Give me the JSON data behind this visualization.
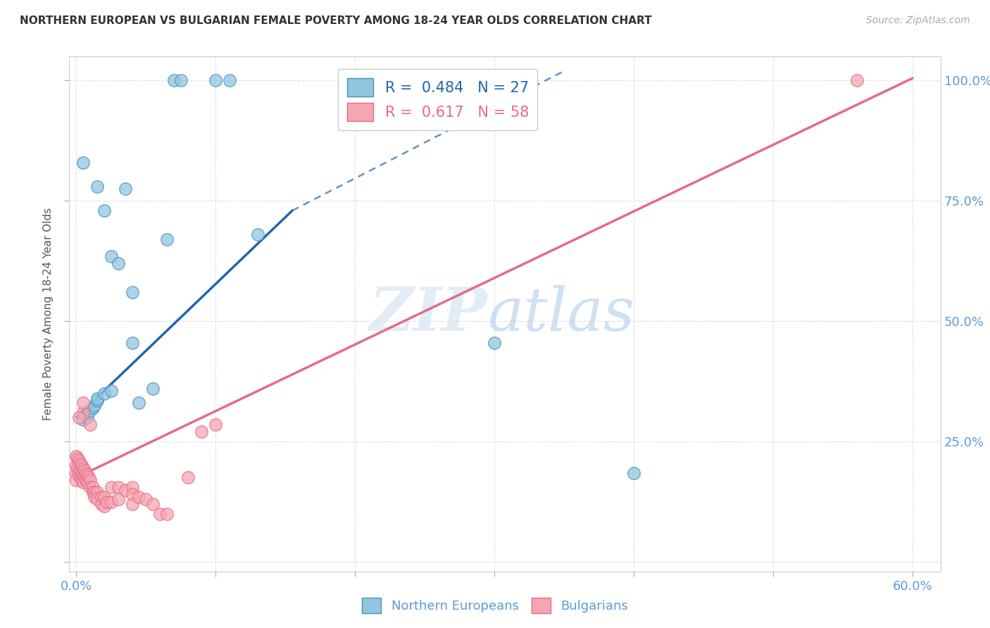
{
  "title": "NORTHERN EUROPEAN VS BULGARIAN FEMALE POVERTY AMONG 18-24 YEAR OLDS CORRELATION CHART",
  "source": "Source: ZipAtlas.com",
  "ylabel": "Female Poverty Among 18-24 Year Olds",
  "xlim": [
    -0.005,
    0.62
  ],
  "ylim": [
    -0.02,
    1.05
  ],
  "xticks": [
    0.0,
    0.1,
    0.2,
    0.3,
    0.4,
    0.5,
    0.6
  ],
  "yticks": [
    0.0,
    0.25,
    0.5,
    0.75,
    1.0
  ],
  "blue_color": "#92c5de",
  "pink_color": "#f4a7b0",
  "blue_edge_color": "#4393c3",
  "pink_edge_color": "#e8698a",
  "blue_line_color": "#2166ac",
  "pink_line_color": "#e8698a",
  "blue_scatter": [
    [
      0.005,
      0.83
    ],
    [
      0.015,
      0.78
    ],
    [
      0.02,
      0.73
    ],
    [
      0.025,
      0.635
    ],
    [
      0.03,
      0.62
    ],
    [
      0.035,
      0.775
    ],
    [
      0.04,
      0.56
    ],
    [
      0.04,
      0.455
    ],
    [
      0.045,
      0.33
    ],
    [
      0.055,
      0.36
    ],
    [
      0.065,
      0.67
    ],
    [
      0.07,
      1.0
    ],
    [
      0.075,
      1.0
    ],
    [
      0.1,
      1.0
    ],
    [
      0.11,
      1.0
    ],
    [
      0.005,
      0.295
    ],
    [
      0.008,
      0.3
    ],
    [
      0.01,
      0.315
    ],
    [
      0.012,
      0.32
    ],
    [
      0.013,
      0.325
    ],
    [
      0.015,
      0.335
    ],
    [
      0.015,
      0.34
    ],
    [
      0.02,
      0.35
    ],
    [
      0.025,
      0.355
    ],
    [
      0.13,
      0.68
    ],
    [
      0.3,
      0.455
    ],
    [
      0.4,
      0.185
    ]
  ],
  "pink_scatter": [
    [
      0.0,
      0.22
    ],
    [
      0.0,
      0.2
    ],
    [
      0.0,
      0.185
    ],
    [
      0.0,
      0.17
    ],
    [
      0.001,
      0.215
    ],
    [
      0.001,
      0.195
    ],
    [
      0.002,
      0.21
    ],
    [
      0.002,
      0.185
    ],
    [
      0.003,
      0.205
    ],
    [
      0.003,
      0.19
    ],
    [
      0.003,
      0.175
    ],
    [
      0.004,
      0.2
    ],
    [
      0.004,
      0.185
    ],
    [
      0.004,
      0.17
    ],
    [
      0.005,
      0.195
    ],
    [
      0.005,
      0.18
    ],
    [
      0.005,
      0.165
    ],
    [
      0.006,
      0.19
    ],
    [
      0.006,
      0.175
    ],
    [
      0.007,
      0.185
    ],
    [
      0.007,
      0.17
    ],
    [
      0.008,
      0.18
    ],
    [
      0.008,
      0.165
    ],
    [
      0.009,
      0.175
    ],
    [
      0.01,
      0.17
    ],
    [
      0.01,
      0.155
    ],
    [
      0.012,
      0.155
    ],
    [
      0.012,
      0.145
    ],
    [
      0.013,
      0.145
    ],
    [
      0.013,
      0.135
    ],
    [
      0.015,
      0.145
    ],
    [
      0.015,
      0.13
    ],
    [
      0.018,
      0.135
    ],
    [
      0.018,
      0.12
    ],
    [
      0.02,
      0.135
    ],
    [
      0.02,
      0.115
    ],
    [
      0.022,
      0.125
    ],
    [
      0.025,
      0.155
    ],
    [
      0.025,
      0.125
    ],
    [
      0.03,
      0.155
    ],
    [
      0.03,
      0.13
    ],
    [
      0.035,
      0.15
    ],
    [
      0.04,
      0.155
    ],
    [
      0.04,
      0.14
    ],
    [
      0.04,
      0.12
    ],
    [
      0.045,
      0.135
    ],
    [
      0.05,
      0.13
    ],
    [
      0.055,
      0.12
    ],
    [
      0.06,
      0.1
    ],
    [
      0.065,
      0.1
    ],
    [
      0.08,
      0.175
    ],
    [
      0.09,
      0.27
    ],
    [
      0.1,
      0.285
    ],
    [
      0.005,
      0.31
    ],
    [
      0.01,
      0.285
    ],
    [
      0.56,
      1.0
    ],
    [
      0.005,
      0.33
    ],
    [
      0.002,
      0.3
    ]
  ],
  "blue_line": [
    [
      0.0,
      0.3
    ],
    [
      0.155,
      0.73
    ]
  ],
  "blue_line_dashed": [
    [
      0.155,
      0.73
    ],
    [
      0.35,
      1.02
    ]
  ],
  "pink_line": [
    [
      0.0,
      0.175
    ],
    [
      0.6,
      1.005
    ]
  ],
  "watermark_zip": "ZIP",
  "watermark_atlas": "atlas",
  "background_color": "#ffffff",
  "grid_color": "#dddddd",
  "tick_color": "#5b9bd5",
  "legend_blue_label": "R =  0.484   N = 27",
  "legend_pink_label": "R =  0.617   N = 58",
  "legend_northern": "Northern Europeans",
  "legend_bulgarians": "Bulgarians"
}
